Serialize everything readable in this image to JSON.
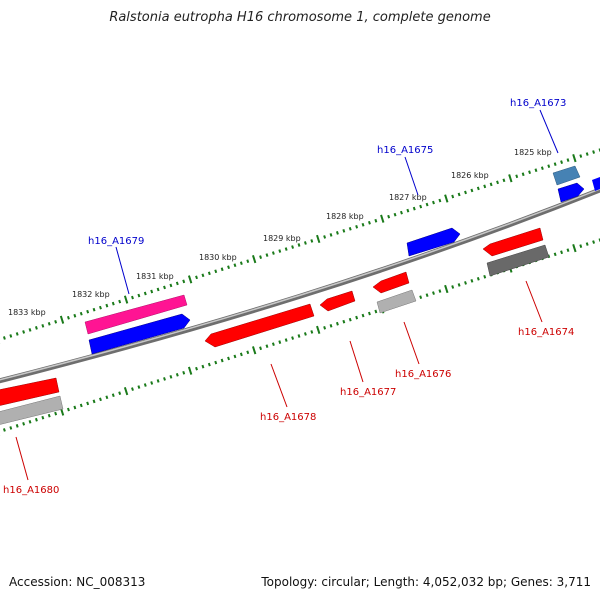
{
  "title": "Ralstonia eutropha H16 chromosome 1, complete genome",
  "footer": {
    "accession": "Accession: NC_008313",
    "stats": "Topology: circular; Length: 4,052,032 bp; Genes: 3,711"
  },
  "ticks": [
    "1833 kbp",
    "1832 kbp",
    "1831 kbp",
    "1830 kbp",
    "1829 kbp",
    "1828 kbp",
    "1827 kbp",
    "1826 kbp",
    "1825 kbp"
  ],
  "genes": [
    {
      "label": "h16_A1673",
      "color": "#0000cc"
    },
    {
      "label": "h16_A1675",
      "color": "#0000cc"
    },
    {
      "label": "h16_A1679",
      "color": "#0000cc"
    },
    {
      "label": "h16_A1674",
      "color": "#cc0000"
    },
    {
      "label": "h16_A1676",
      "color": "#cc0000"
    },
    {
      "label": "h16_A1677",
      "color": "#cc0000"
    },
    {
      "label": "h16_A1678",
      "color": "#cc0000"
    },
    {
      "label": "h16_A1680",
      "color": "#cc0000"
    }
  ],
  "colors": {
    "forward_cds": "#0000ff",
    "reverse_cds": "#ff0000",
    "tick_green": "#1a7a1a",
    "backbone": "#808080",
    "pink_feature": "#ff1493",
    "steelblue_feature": "#4682b4",
    "gray_feature": "#a9a9a9",
    "darkgray_feature": "#696969"
  }
}
